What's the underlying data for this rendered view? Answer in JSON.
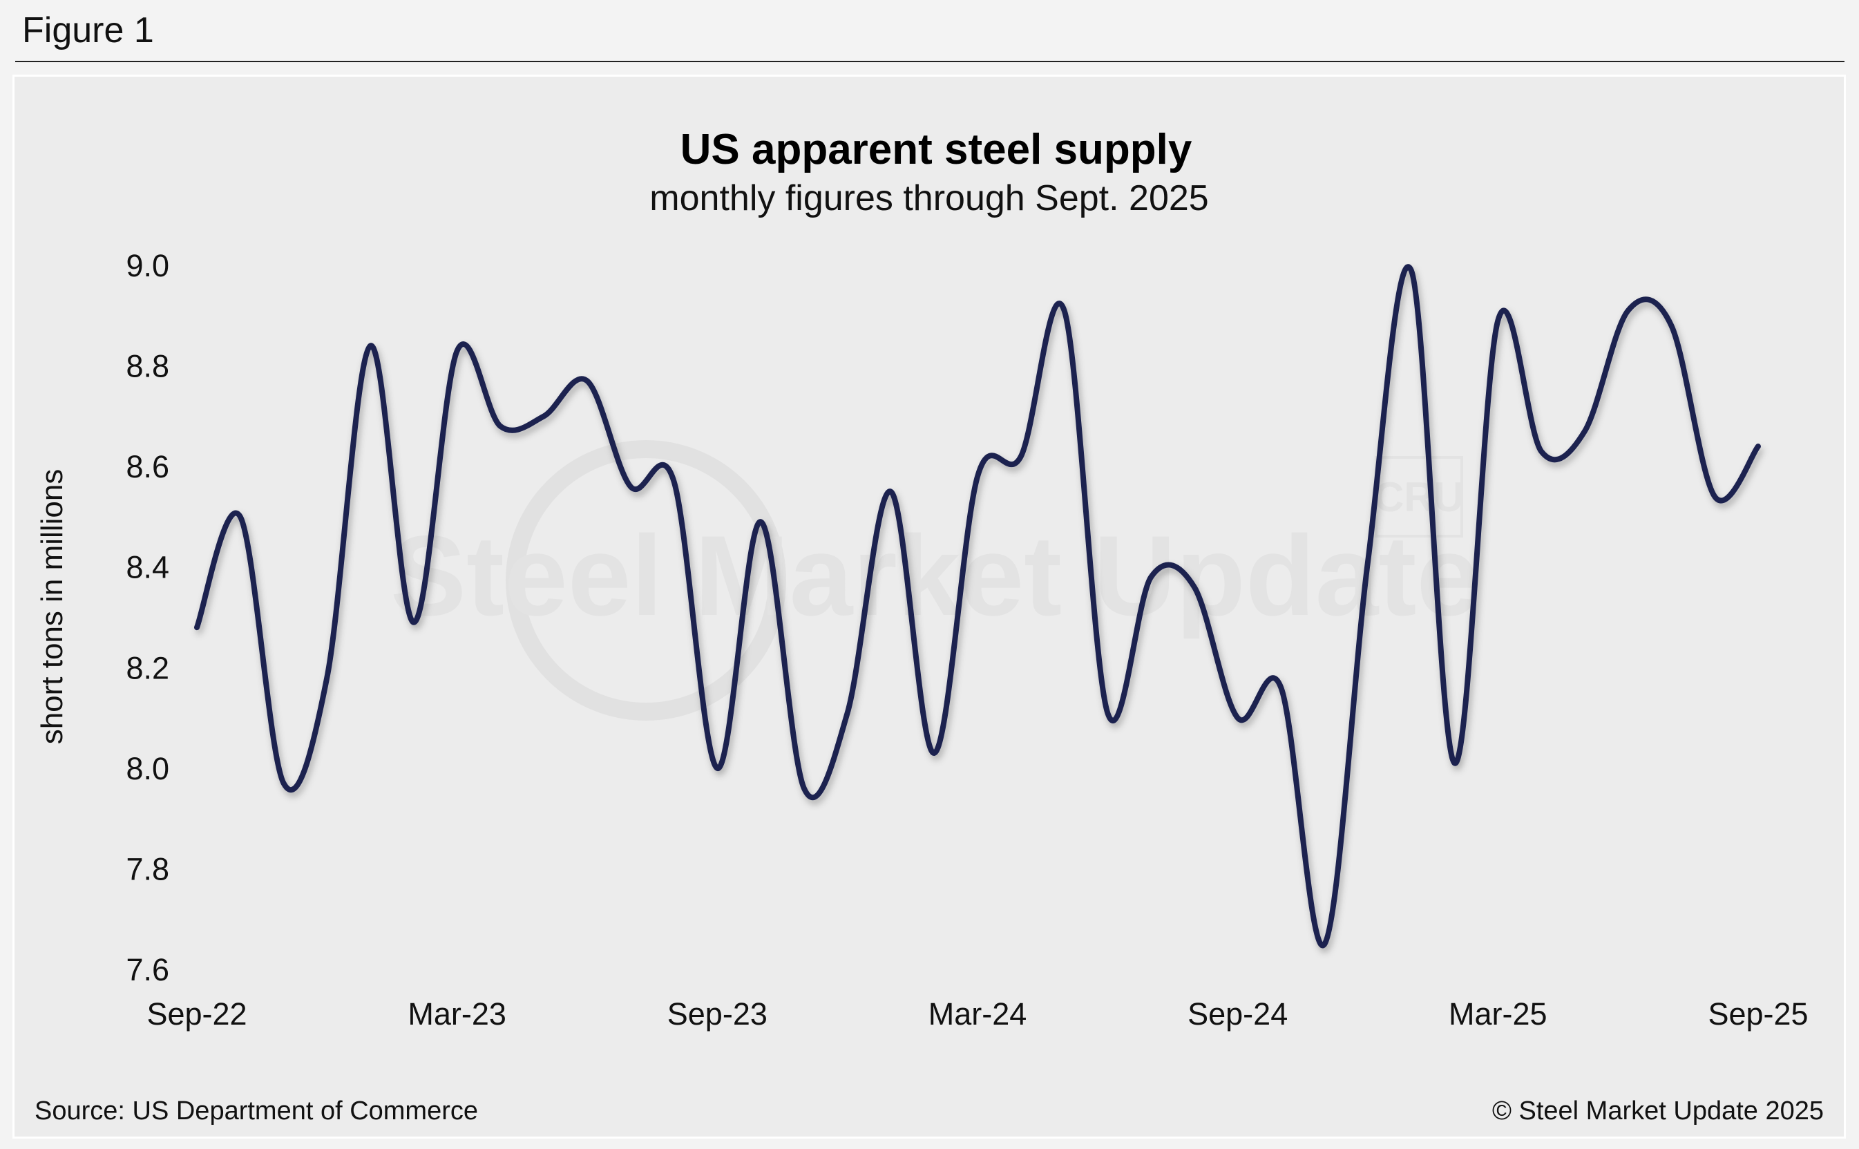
{
  "figure_label": "Figure 1",
  "footer": {
    "source": "Source: US Department of Commerce",
    "copyright": "© Steel Market Update 2025"
  },
  "watermark": {
    "text": "Steel Market Update",
    "badge": "CRU"
  },
  "colors": {
    "line": "#1c2250",
    "background": "#ececec"
  },
  "chart_data": {
    "type": "line",
    "title": "US apparent steel supply",
    "subtitle": "monthly figures through Sept. 2025",
    "xlabel": "",
    "ylabel": "short tons in millions",
    "ylim": [
      7.6,
      9.0
    ],
    "y_ticks": [
      "9.0",
      "8.8",
      "8.6",
      "8.4",
      "8.2",
      "8.0",
      "7.8",
      "7.6"
    ],
    "x_tick_labels": [
      "Sep-22",
      "Mar-23",
      "Sep-23",
      "Mar-24",
      "Sep-24",
      "Mar-25",
      "Sep-25"
    ],
    "grid": false,
    "legend": "none",
    "x": [
      "Sep-22",
      "Oct-22",
      "Nov-22",
      "Dec-22",
      "Jan-23",
      "Feb-23",
      "Mar-23",
      "Apr-23",
      "May-23",
      "Jun-23",
      "Jul-23",
      "Aug-23",
      "Sep-23",
      "Oct-23",
      "Nov-23",
      "Dec-23",
      "Jan-24",
      "Feb-24",
      "Mar-24",
      "Apr-24",
      "May-24",
      "Jun-24",
      "Jul-24",
      "Aug-24",
      "Sep-24",
      "Oct-24",
      "Nov-24",
      "Dec-24",
      "Jan-25",
      "Feb-25",
      "Mar-25",
      "Apr-25",
      "May-25",
      "Jun-25",
      "Jul-25",
      "Aug-25",
      "Sep-25"
    ],
    "series": [
      {
        "values": [
          8.28,
          8.5,
          7.97,
          8.18,
          8.84,
          8.29,
          8.83,
          8.68,
          8.7,
          8.77,
          8.56,
          8.57,
          8.0,
          8.49,
          7.96,
          8.11,
          8.55,
          8.03,
          8.58,
          8.62,
          8.91,
          8.11,
          8.38,
          8.36,
          8.1,
          8.16,
          7.65,
          8.41,
          8.99,
          8.01,
          8.89,
          8.63,
          8.67,
          8.91,
          8.88,
          8.54,
          8.64
        ]
      }
    ]
  }
}
